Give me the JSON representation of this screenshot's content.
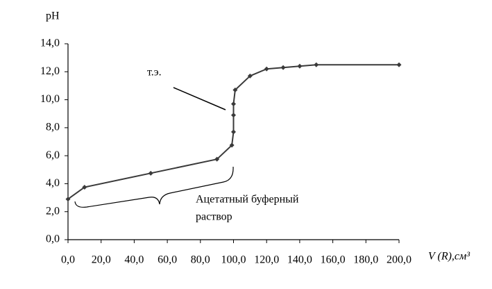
{
  "chart_data": {
    "type": "line",
    "y_label": "pH",
    "x_label": "V (R),см³",
    "x": [
      0,
      10,
      50,
      90,
      99,
      100,
      100,
      100,
      101,
      110,
      120,
      130,
      140,
      150,
      200
    ],
    "series": [
      {
        "color": "#3a3a3a",
        "values": [
          2.9,
          3.75,
          4.75,
          5.75,
          6.75,
          7.7,
          8.9,
          9.7,
          10.7,
          11.7,
          12.2,
          12.3,
          12.4,
          12.5,
          12.5
        ]
      }
    ],
    "xlim": [
      0,
      200
    ],
    "ylim": [
      0,
      14
    ],
    "xticks": [
      {
        "value": 0,
        "label": "0,0"
      },
      {
        "value": 20,
        "label": "20,0"
      },
      {
        "value": 40,
        "label": "40,0"
      },
      {
        "value": 60,
        "label": "60,0"
      },
      {
        "value": 80,
        "label": "80,0"
      },
      {
        "value": 100,
        "label": "100,0"
      },
      {
        "value": 120,
        "label": "120,0"
      },
      {
        "value": 140,
        "label": "140,0"
      },
      {
        "value": 160,
        "label": "160,0"
      },
      {
        "value": 180,
        "label": "180,0"
      },
      {
        "value": 200,
        "label": "200,0"
      }
    ],
    "yticks": [
      {
        "value": 0,
        "label": "0,0"
      },
      {
        "value": 2,
        "label": "2,0"
      },
      {
        "value": 4,
        "label": "4,0"
      },
      {
        "value": 6,
        "label": "6,0"
      },
      {
        "value": 8,
        "label": "8,0"
      },
      {
        "value": 10,
        "label": "10,0"
      },
      {
        "value": 12,
        "label": "12,0"
      },
      {
        "value": 14,
        "label": "14,0"
      }
    ],
    "annotations": [
      {
        "text": "т.э."
      },
      {
        "lines": [
          "Ацетатный буферный",
          "раствор"
        ]
      }
    ]
  }
}
